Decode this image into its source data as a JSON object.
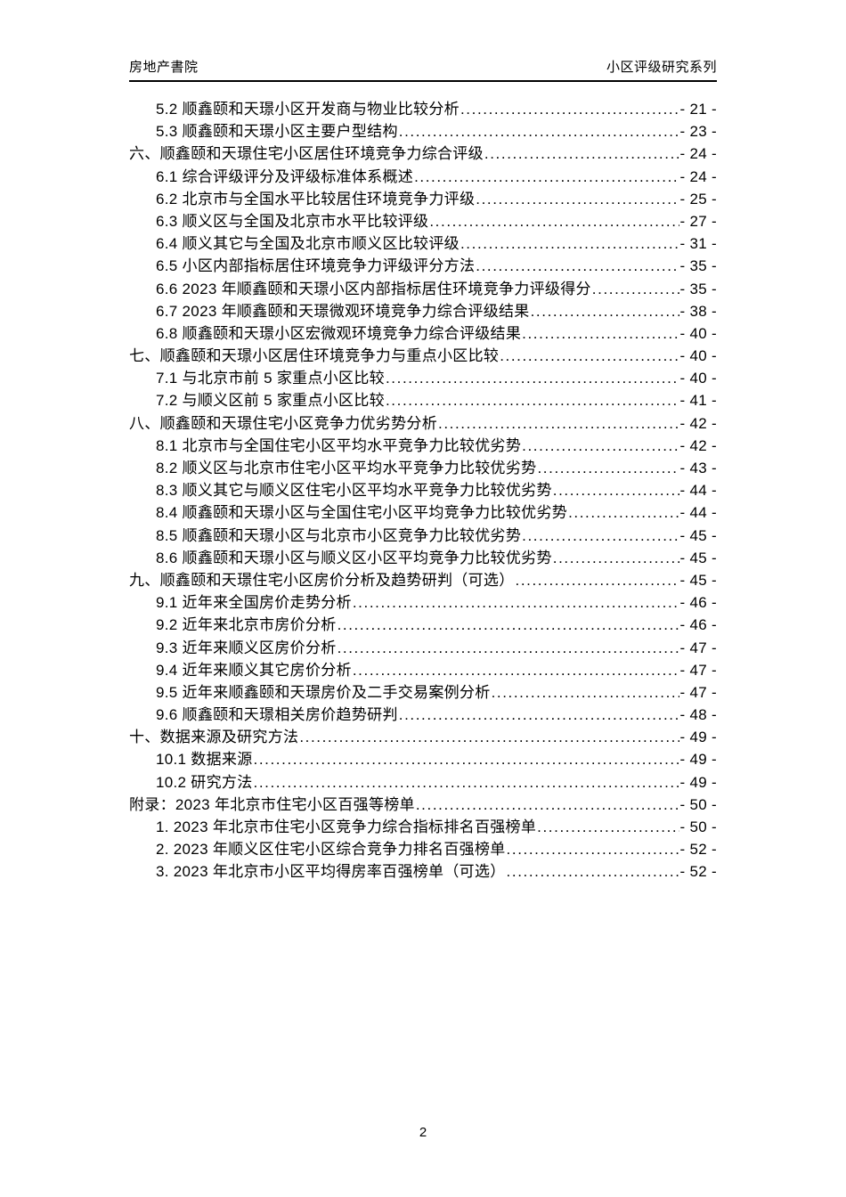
{
  "header": {
    "left": "房地产書院",
    "right": "小区评级研究系列"
  },
  "toc": {
    "entries": [
      {
        "level": 2,
        "label": "5.2 顺鑫颐和天璟小区开发商与物业比较分析",
        "page": "- 21 -"
      },
      {
        "level": 2,
        "label": "5.3 顺鑫颐和天璟小区主要户型结构",
        "page": "- 23 -"
      },
      {
        "level": 1,
        "label": "六、顺鑫颐和天璟住宅小区居住环境竞争力综合评级",
        "page": "- 24 -"
      },
      {
        "level": 2,
        "label": "6.1 综合评级评分及评级标准体系概述",
        "page": "- 24 -"
      },
      {
        "level": 2,
        "label": "6.2 北京市与全国水平比较居住环境竞争力评级",
        "page": "- 25 -"
      },
      {
        "level": 2,
        "label": "6.3 顺义区与全国及北京市水平比较评级",
        "page": "- 27 -"
      },
      {
        "level": 2,
        "label": "6.4 顺义其它与全国及北京市顺义区比较评级",
        "page": "- 31 -"
      },
      {
        "level": 2,
        "label": "6.5 小区内部指标居住环境竞争力评级评分方法",
        "page": "- 35 -"
      },
      {
        "level": 2,
        "label": "6.6 2023 年顺鑫颐和天璟小区内部指标居住环境竞争力评级得分",
        "page": "- 35 -"
      },
      {
        "level": 2,
        "label": "6.7 2023 年顺鑫颐和天璟微观环境竞争力综合评级结果",
        "page": "- 38 -"
      },
      {
        "level": 2,
        "label": "6.8 顺鑫颐和天璟小区宏微观环境竞争力综合评级结果",
        "page": "- 40 -"
      },
      {
        "level": 1,
        "label": "七、顺鑫颐和天璟小区居住环境竞争力与重点小区比较",
        "page": "- 40 -"
      },
      {
        "level": 2,
        "label": "7.1 与北京市前 5 家重点小区比较",
        "page": "- 40 -"
      },
      {
        "level": 2,
        "label": "7.2 与顺义区前 5 家重点小区比较",
        "page": "- 41 -"
      },
      {
        "level": 1,
        "label": "八、顺鑫颐和天璟住宅小区竞争力优劣势分析",
        "page": "- 42 -"
      },
      {
        "level": 2,
        "label": "8.1 北京市与全国住宅小区平均水平竞争力比较优劣势",
        "page": "- 42 -"
      },
      {
        "level": 2,
        "label": "8.2 顺义区与北京市住宅小区平均水平竞争力比较优劣势",
        "page": "- 43 -"
      },
      {
        "level": 2,
        "label": "8.3 顺义其它与顺义区住宅小区平均水平竞争力比较优劣势",
        "page": "- 44 -"
      },
      {
        "level": 2,
        "label": "8.4 顺鑫颐和天璟小区与全国住宅小区平均竞争力比较优劣势",
        "page": "- 44 -"
      },
      {
        "level": 2,
        "label": "8.5 顺鑫颐和天璟小区与北京市小区竞争力比较优劣势",
        "page": "- 45 -"
      },
      {
        "level": 2,
        "label": "8.6 顺鑫颐和天璟小区与顺义区小区平均竞争力比较优劣势",
        "page": "- 45 -"
      },
      {
        "level": 1,
        "label": "九、顺鑫颐和天璟住宅小区房价分析及趋势研判（可选）",
        "page": "- 45 -"
      },
      {
        "level": 2,
        "label": "9.1 近年来全国房价走势分析",
        "page": "- 46 -"
      },
      {
        "level": 2,
        "label": "9.2 近年来北京市房价分析",
        "page": "- 46 -"
      },
      {
        "level": 2,
        "label": "9.3 近年来顺义区房价分析",
        "page": "- 47 -"
      },
      {
        "level": 2,
        "label": "9.4 近年来顺义其它房价分析",
        "page": "- 47 -"
      },
      {
        "level": 2,
        "label": "9.5 近年来顺鑫颐和天璟房价及二手交易案例分析",
        "page": "- 47 -"
      },
      {
        "level": 2,
        "label": "9.6 顺鑫颐和天璟相关房价趋势研判",
        "page": "- 48 -"
      },
      {
        "level": 1,
        "label": "十、数据来源及研究方法",
        "page": "- 49 -"
      },
      {
        "level": 2,
        "label": "10.1 数据来源",
        "page": "- 49 -"
      },
      {
        "level": 2,
        "label": "10.2 研究方法",
        "page": "- 49 -"
      },
      {
        "level": 1,
        "label": "附录：2023 年北京市住宅小区百强等榜单",
        "page": "- 50 -"
      },
      {
        "level": 2,
        "label": "1. 2023 年北京市住宅小区竞争力综合指标排名百强榜单",
        "page": "- 50 -"
      },
      {
        "level": 2,
        "label": "2. 2023 年顺义区住宅小区综合竞争力排名百强榜单",
        "page": "- 52 -"
      },
      {
        "level": 2,
        "label": "3. 2023 年北京市小区平均得房率百强榜单（可选）",
        "page": "- 52 -"
      }
    ]
  },
  "footer": {
    "page_number": "2"
  }
}
